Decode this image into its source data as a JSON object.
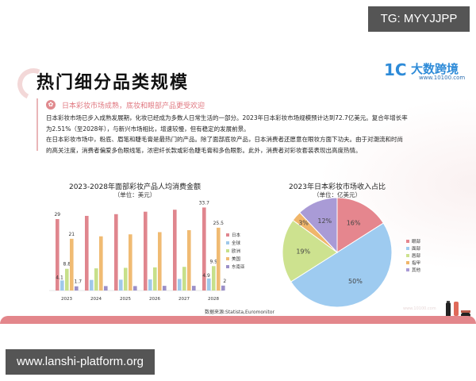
{
  "watermarks": {
    "top_right": "TG: MYYJJPP",
    "bottom_left": "www.lanshi-platform.org"
  },
  "slide": {
    "title": "热门细分品类规模",
    "logo": {
      "mark": "1C",
      "name": "大数跨境",
      "url": "www.10100.com",
      "color": "#2e8bd8"
    },
    "panel": {
      "heading": "日本彩妆市场成熟，底妆和眼部产品更受欢迎",
      "lines": [
        "日本彩妆市场已步入成熟发展期，化妆已经成为多数人日常生活的一部分。2023年日本彩妆市场规模预计达到72.7亿美元。复合年增长率",
        "为2.51%（至2028年），与新兴市场相比，增速较慢，但有稳定的发展前景。",
        "在日本彩妆市场中，粉底、眉笔和睫毛膏是最热门的产品。除了面部底妆产品，日本消费者还愿意在眼妆方面下功夫。由于对潮流和时尚",
        "的高关注度，消费者偏爱多色眼线笔，浓密纤长款或彩色睫毛膏和多色眼影。此外，消费者对彩妆套装表现出高度热情。"
      ]
    },
    "source": "数据来源:Statista,Euromonitor",
    "footer_url": "www.10100.com",
    "accent_color": "#e3868b"
  },
  "chart_data": [
    {
      "type": "bar",
      "title": "2023-2028年面部彩妆产品人均消费金额",
      "subtitle": "（单位：美元）",
      "categories": [
        "2023",
        "2024",
        "2025",
        "2026",
        "2027",
        "2028"
      ],
      "series": [
        {
          "name": "日本",
          "color": "#e0868e",
          "values": [
            29,
            30.3,
            31,
            32,
            32.8,
            33.7
          ]
        },
        {
          "name": "全球",
          "color": "#9fc8ea",
          "values": [
            4.1,
            4.3,
            4.4,
            4.5,
            4.7,
            4.9
          ]
        },
        {
          "name": "欧洲",
          "color": "#c7e08a",
          "values": [
            8.8,
            9.0,
            9.2,
            9.4,
            9.6,
            9.9
          ]
        },
        {
          "name": "美国",
          "color": "#f0bb73",
          "values": [
            21,
            22,
            22.8,
            23.7,
            24.5,
            25.5
          ]
        },
        {
          "name": "东南亚",
          "color": "#9b90c8",
          "values": [
            1.7,
            1.8,
            1.8,
            1.9,
            1.9,
            2
          ]
        }
      ],
      "data_labels": {
        "2023": {
          "日本": "29",
          "全球": "4.1",
          "欧洲": "8.8",
          "美国": "21",
          "东南亚": "1.7"
        },
        "2028": {
          "日本": "33.7",
          "全球": "4.9",
          "欧洲": "9.9",
          "美国": "25.5",
          "东南亚": "2"
        }
      },
      "xlabel": "",
      "ylabel": "",
      "ylim": [
        0,
        36
      ],
      "grid": false,
      "legend_position": "right"
    },
    {
      "type": "pie",
      "title": "2023年日本彩妆市场收入占比",
      "subtitle": "（单位：亿美元）",
      "categories": [
        "眼部",
        "面部",
        "唇部",
        "指甲",
        "其他"
      ],
      "values": [
        16,
        50,
        19,
        3,
        12
      ],
      "labels": [
        "16%",
        "50%",
        "19%",
        "3%",
        "12%"
      ],
      "colors": [
        "#e5868e",
        "#9ecbf0",
        "#cde28f",
        "#f0b66a",
        "#a99bd6"
      ],
      "legend_position": "right"
    }
  ]
}
